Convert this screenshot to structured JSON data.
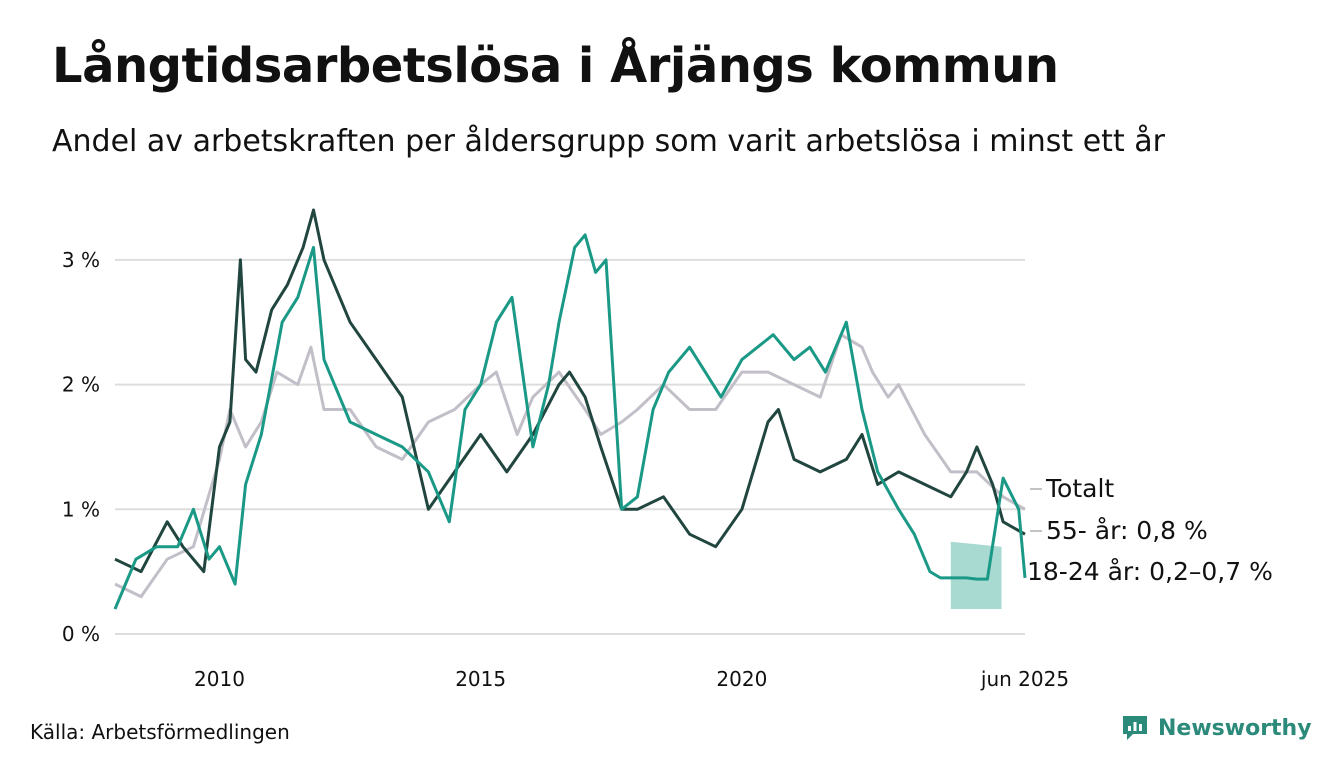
{
  "title": "Långtidsarbetslösa i Årjängs kommun",
  "subtitle": "Andel av arbetskraften per åldersgrupp som varit arbetslösa i minst ett år",
  "source": "Källa: Arbetsförmedlingen",
  "brand": "Newsworthy",
  "colors": {
    "total": "#c3bfc8",
    "age55": "#21463f",
    "age18_24": "#1a9986",
    "band": "#9fd6cc",
    "grid": "#dddddd",
    "brand": "#2b8a7a"
  },
  "chart_data": {
    "type": "line",
    "title": "Långtidsarbetslösa i Årjängs kommun",
    "subtitle": "Andel av arbetskraften per åldersgrupp som varit arbetslösa i minst ett år",
    "xlim": [
      2008.0,
      2025.42
    ],
    "ylim": [
      0,
      3.4
    ],
    "y_ticks": [
      0,
      1,
      2,
      3
    ],
    "y_tick_labels": [
      "0 %",
      "1 %",
      "2 %",
      "3 %"
    ],
    "x_ticks": [
      2010,
      2015,
      2020,
      2025.42
    ],
    "x_tick_labels": [
      "2010",
      "2015",
      "2020",
      "jun 2025"
    ],
    "grid": true,
    "series": [
      {
        "name": "Totalt",
        "end_label": "Totalt",
        "x": [
          2008.0,
          2008.5,
          2009.0,
          2009.5,
          2010.0,
          2010.2,
          2010.5,
          2010.8,
          2011.1,
          2011.5,
          2011.75,
          2012.0,
          2012.5,
          2013.0,
          2013.5,
          2014.0,
          2014.5,
          2015.0,
          2015.3,
          2015.7,
          2016.0,
          2016.5,
          2017.0,
          2017.3,
          2017.7,
          2018.0,
          2018.5,
          2019.0,
          2019.5,
          2020.0,
          2020.5,
          2021.0,
          2021.5,
          2021.9,
          2022.3,
          2022.5,
          2022.8,
          2023.0,
          2023.5,
          2024.0,
          2024.5,
          2025.0,
          2025.42
        ],
        "y": [
          0.4,
          0.3,
          0.6,
          0.7,
          1.4,
          1.8,
          1.5,
          1.7,
          2.1,
          2.0,
          2.3,
          1.8,
          1.8,
          1.5,
          1.4,
          1.7,
          1.8,
          2.0,
          2.1,
          1.6,
          1.9,
          2.1,
          1.8,
          1.6,
          1.7,
          1.8,
          2.0,
          1.8,
          1.8,
          2.1,
          2.1,
          2.0,
          1.9,
          2.4,
          2.3,
          2.1,
          1.9,
          2.0,
          1.6,
          1.3,
          1.3,
          1.1,
          1.0
        ]
      },
      {
        "name": "55- år",
        "end_label": "55- år: 0,8 %",
        "x": [
          2008.0,
          2008.5,
          2009.0,
          2009.3,
          2009.7,
          2010.0,
          2010.2,
          2010.4,
          2010.5,
          2010.7,
          2011.0,
          2011.3,
          2011.6,
          2011.8,
          2012.0,
          2012.5,
          2013.0,
          2013.5,
          2014.0,
          2014.5,
          2015.0,
          2015.5,
          2016.0,
          2016.5,
          2016.7,
          2017.0,
          2017.3,
          2017.7,
          2018.0,
          2018.5,
          2019.0,
          2019.5,
          2020.0,
          2020.5,
          2020.7,
          2021.0,
          2021.5,
          2022.0,
          2022.3,
          2022.6,
          2023.0,
          2023.5,
          2024.0,
          2024.3,
          2024.5,
          2024.8,
          2025.0,
          2025.42
        ],
        "y": [
          0.6,
          0.5,
          0.9,
          0.7,
          0.5,
          1.5,
          1.7,
          3.0,
          2.2,
          2.1,
          2.6,
          2.8,
          3.1,
          3.4,
          3.0,
          2.5,
          2.2,
          1.9,
          1.0,
          1.3,
          1.6,
          1.3,
          1.6,
          2.0,
          2.1,
          1.9,
          1.5,
          1.0,
          1.0,
          1.1,
          0.8,
          0.7,
          1.0,
          1.7,
          1.8,
          1.4,
          1.3,
          1.4,
          1.6,
          1.2,
          1.3,
          1.2,
          1.1,
          1.3,
          1.5,
          1.2,
          0.9,
          0.8
        ]
      },
      {
        "name": "18-24 år",
        "end_label": "18-24 år: 0,2–0,7 %",
        "x": [
          2008.0,
          2008.4,
          2008.8,
          2009.2,
          2009.5,
          2009.8,
          2010.0,
          2010.3,
          2010.5,
          2010.8,
          2011.2,
          2011.5,
          2011.8,
          2012.0,
          2012.5,
          2013.0,
          2013.5,
          2014.0,
          2014.4,
          2014.7,
          2015.0,
          2015.3,
          2015.6,
          2016.0,
          2016.3,
          2016.5,
          2016.8,
          2017.0,
          2017.2,
          2017.4,
          2017.7,
          2018.0,
          2018.3,
          2018.6,
          2019.0,
          2019.3,
          2019.6,
          2020.0,
          2020.3,
          2020.6,
          2021.0,
          2021.3,
          2021.6,
          2022.0,
          2022.3,
          2022.6,
          2023.0,
          2023.3,
          2023.6,
          2023.8,
          2024.0,
          2024.3,
          2024.5,
          2024.7,
          2025.0,
          2025.3,
          2025.42
        ],
        "y": [
          0.2,
          0.6,
          0.7,
          0.7,
          1.0,
          0.6,
          0.7,
          0.4,
          1.2,
          1.6,
          2.5,
          2.7,
          3.1,
          2.2,
          1.7,
          1.6,
          1.5,
          1.3,
          0.9,
          1.8,
          2.0,
          2.5,
          2.7,
          1.5,
          2.0,
          2.5,
          3.1,
          3.2,
          2.9,
          3.0,
          1.0,
          1.1,
          1.8,
          2.1,
          2.3,
          2.1,
          1.9,
          2.2,
          2.3,
          2.4,
          2.2,
          2.3,
          2.1,
          2.5,
          1.8,
          1.3,
          1.0,
          0.8,
          0.5,
          0.45,
          0.45,
          0.45,
          0.44,
          0.44,
          1.25,
          1.0,
          0.45
        ]
      }
    ],
    "uncertainty_band": {
      "series": "18-24 år",
      "x": [
        2024.0,
        2024.97
      ],
      "lower": [
        0.2,
        0.2
      ],
      "upper": [
        0.74,
        0.7
      ]
    }
  }
}
